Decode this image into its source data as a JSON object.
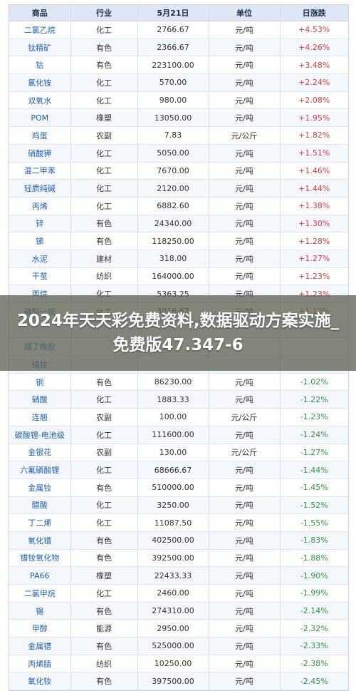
{
  "headers": [
    "商品",
    "行业",
    "5月21日",
    "单位",
    "日涨跌"
  ],
  "rows": [
    {
      "name": "二氯乙烷",
      "cat": "化工",
      "price": "2766.67",
      "unit": "元/吨",
      "change": "+4.53%",
      "dir": "up"
    },
    {
      "name": "钛精矿",
      "cat": "有色",
      "price": "2366.67",
      "unit": "元/吨",
      "change": "+4.26%",
      "dir": "up"
    },
    {
      "name": "钴",
      "cat": "有色",
      "price": "223100.00",
      "unit": "元/吨",
      "change": "+3.48%",
      "dir": "up"
    },
    {
      "name": "氯化铵",
      "cat": "化工",
      "price": "570.00",
      "unit": "元/吨",
      "change": "+2.24%",
      "dir": "up"
    },
    {
      "name": "双氧水",
      "cat": "化工",
      "price": "980.00",
      "unit": "元/吨",
      "change": "+2.08%",
      "dir": "up"
    },
    {
      "name": "POM",
      "cat": "橡塑",
      "price": "13050.00",
      "unit": "元/吨",
      "change": "+1.95%",
      "dir": "up"
    },
    {
      "name": "鸡蛋",
      "cat": "农副",
      "price": "7.83",
      "unit": "元/公斤",
      "change": "+1.82%",
      "dir": "up"
    },
    {
      "name": "硝酸钾",
      "cat": "化工",
      "price": "5050.00",
      "unit": "元/吨",
      "change": "+1.51%",
      "dir": "up"
    },
    {
      "name": "混二甲苯",
      "cat": "化工",
      "price": "7670.00",
      "unit": "元/吨",
      "change": "+1.46%",
      "dir": "up"
    },
    {
      "name": "轻质纯碱",
      "cat": "化工",
      "price": "2120.00",
      "unit": "元/吨",
      "change": "+1.44%",
      "dir": "up"
    },
    {
      "name": "丙烯",
      "cat": "化工",
      "price": "6882.60",
      "unit": "元/吨",
      "change": "+1.38%",
      "dir": "up"
    },
    {
      "name": "锌",
      "cat": "有色",
      "price": "24340.00",
      "unit": "元/吨",
      "change": "+1.30%",
      "dir": "up"
    },
    {
      "name": "锑",
      "cat": "有色",
      "price": "118250.00",
      "unit": "元/吨",
      "change": "+1.28%",
      "dir": "up"
    },
    {
      "name": "水泥",
      "cat": "建材",
      "price": "318.00",
      "unit": "元/吨",
      "change": "+1.27%",
      "dir": "up"
    },
    {
      "name": "干茧",
      "cat": "纺织",
      "price": "164000.00",
      "unit": "元/吨",
      "change": "+1.23%",
      "dir": "up"
    },
    {
      "name": "丙烷",
      "cat": "化工",
      "price": "5363.25",
      "unit": "元/吨",
      "change": "+1.23%",
      "dir": "up"
    },
    {
      "name": "磷酸一铵",
      "cat": "化工",
      "price": "3016.67",
      "unit": "元/吨",
      "change": "+1.12%",
      "dir": "up"
    },
    {
      "name": "",
      "cat": "",
      "price": "",
      "unit": "",
      "change": "",
      "dir": "up"
    },
    {
      "name": "顺丁橡胶",
      "cat": "",
      "price": "",
      "unit": "",
      "change": "",
      "dir": "up"
    },
    {
      "name": "镨钕",
      "cat": "",
      "price": "",
      "unit": "",
      "change": "",
      "dir": "down"
    },
    {
      "name": "铜",
      "cat": "有色",
      "price": "86230.00",
      "unit": "元/吨",
      "change": "-1.02%",
      "dir": "down"
    },
    {
      "name": "硝酸",
      "cat": "化工",
      "price": "1883.33",
      "unit": "元/吨",
      "change": "-1.22%",
      "dir": "down"
    },
    {
      "name": "连翘",
      "cat": "农副",
      "price": "100.00",
      "unit": "元/公斤",
      "change": "-1.23%",
      "dir": "down"
    },
    {
      "name": "碳酸锂-电池级",
      "cat": "化工",
      "price": "111600.00",
      "unit": "元/吨",
      "change": "-1.24%",
      "dir": "down"
    },
    {
      "name": "金银花",
      "cat": "农副",
      "price": "130.00",
      "unit": "元/公斤",
      "change": "-1.27%",
      "dir": "down"
    },
    {
      "name": "六氟磷酸锂",
      "cat": "化工",
      "price": "68666.67",
      "unit": "元/吨",
      "change": "-1.44%",
      "dir": "down"
    },
    {
      "name": "金属钕",
      "cat": "有色",
      "price": "510000.00",
      "unit": "元/吨",
      "change": "-1.45%",
      "dir": "down"
    },
    {
      "name": "醋酸",
      "cat": "化工",
      "price": "3250.00",
      "unit": "元/吨",
      "change": "-1.52%",
      "dir": "down"
    },
    {
      "name": "丁二烯",
      "cat": "化工",
      "price": "11087.50",
      "unit": "元/吨",
      "change": "-1.55%",
      "dir": "down"
    },
    {
      "name": "氧化镨",
      "cat": "有色",
      "price": "402500.00",
      "unit": "元/吨",
      "change": "-1.83%",
      "dir": "down"
    },
    {
      "name": "镨钕氧化物",
      "cat": "有色",
      "price": "392500.00",
      "unit": "元/吨",
      "change": "-1.88%",
      "dir": "down"
    },
    {
      "name": "PA66",
      "cat": "橡塑",
      "price": "22433.33",
      "unit": "元/吨",
      "change": "-1.90%",
      "dir": "down"
    },
    {
      "name": "二氯甲烷",
      "cat": "化工",
      "price": "2460.00",
      "unit": "元/吨",
      "change": "-1.99%",
      "dir": "down"
    },
    {
      "name": "锡",
      "cat": "有色",
      "price": "274310.00",
      "unit": "元/吨",
      "change": "-2.14%",
      "dir": "down"
    },
    {
      "name": "甲醇",
      "cat": "能源",
      "price": "2950.00",
      "unit": "元/吨",
      "change": "-2.32%",
      "dir": "down"
    },
    {
      "name": "金属镨",
      "cat": "有色",
      "price": "525000.00",
      "unit": "元/吨",
      "change": "-2.33%",
      "dir": "down"
    },
    {
      "name": "丙烯腈",
      "cat": "纺织",
      "price": "10250.00",
      "unit": "元/吨",
      "change": "-2.38%",
      "dir": "down"
    },
    {
      "name": "氧化钕",
      "cat": "有色",
      "price": "397500.00",
      "unit": "元/吨",
      "change": "-2.45%",
      "dir": "down"
    }
  ],
  "banner": {
    "title": "2024年天天彩免费资料,数据驱动方案实施_免费版47.347-6"
  },
  "colors": {
    "up": "#e23a3a",
    "down": "#2e9a3e",
    "name": "#1b5fb5",
    "header_bg": "#dfe7f4"
  }
}
